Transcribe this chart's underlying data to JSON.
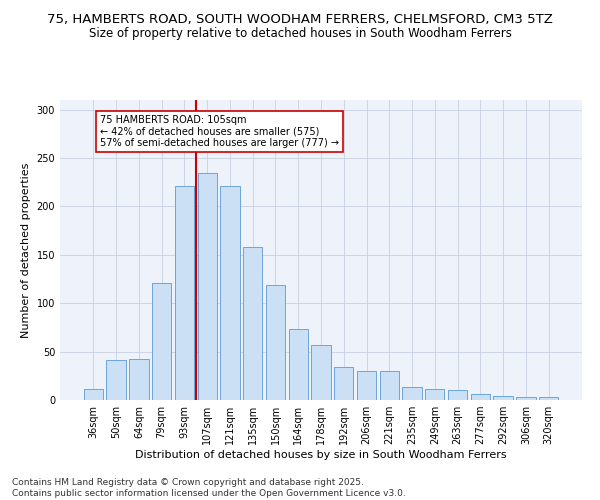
{
  "title1": "75, HAMBERTS ROAD, SOUTH WOODHAM FERRERS, CHELMSFORD, CM3 5TZ",
  "title2": "Size of property relative to detached houses in South Woodham Ferrers",
  "xlabel": "Distribution of detached houses by size in South Woodham Ferrers",
  "ylabel": "Number of detached properties",
  "categories": [
    "36sqm",
    "50sqm",
    "64sqm",
    "79sqm",
    "93sqm",
    "107sqm",
    "121sqm",
    "135sqm",
    "150sqm",
    "164sqm",
    "178sqm",
    "192sqm",
    "206sqm",
    "221sqm",
    "235sqm",
    "249sqm",
    "263sqm",
    "277sqm",
    "292sqm",
    "306sqm",
    "320sqm"
  ],
  "values": [
    11,
    41,
    42,
    121,
    221,
    235,
    221,
    158,
    119,
    73,
    57,
    34,
    30,
    30,
    13,
    11,
    10,
    6,
    4,
    3,
    3
  ],
  "bar_color": "#cce0f5",
  "bar_edge_color": "#5b9bd5",
  "vline_index": 5,
  "annotation_line1": "75 HAMBERTS ROAD: 105sqm",
  "annotation_line2": "← 42% of detached houses are smaller (575)",
  "annotation_line3": "57% of semi-detached houses are larger (777) →",
  "annotation_box_facecolor": "#ffffff",
  "annotation_box_edgecolor": "#cc0000",
  "vline_color": "#cc0000",
  "footer1": "Contains HM Land Registry data © Crown copyright and database right 2025.",
  "footer2": "Contains public sector information licensed under the Open Government Licence v3.0.",
  "bg_color": "#edf2fb",
  "ylim": [
    0,
    310
  ],
  "yticks": [
    0,
    50,
    100,
    150,
    200,
    250,
    300
  ],
  "title1_fontsize": 9.5,
  "title2_fontsize": 8.5,
  "xlabel_fontsize": 8,
  "ylabel_fontsize": 8,
  "tick_fontsize": 7,
  "footer_fontsize": 6.5,
  "annot_fontsize": 7
}
